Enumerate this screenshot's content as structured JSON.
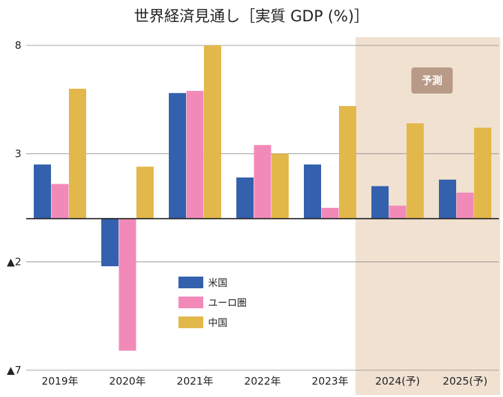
{
  "chart_data": {
    "type": "bar",
    "title": "世界経済見通し［実質 GDP (%)］",
    "categories": [
      "2019年",
      "2020年",
      "2021年",
      "2022年",
      "2023年",
      "2024(予)",
      "2025(予)"
    ],
    "series": [
      {
        "name": "米国",
        "values": [
          2.5,
          -2.2,
          5.8,
          1.9,
          2.5,
          1.5,
          1.8
        ]
      },
      {
        "name": "ユーロ圏",
        "values": [
          1.6,
          -6.1,
          5.9,
          3.4,
          0.5,
          0.6,
          1.2
        ]
      },
      {
        "name": "中国",
        "values": [
          6.0,
          2.4,
          8.0,
          3.0,
          5.2,
          4.4,
          4.2
        ]
      }
    ],
    "y_ticks": [
      {
        "value": 8,
        "label": "8"
      },
      {
        "value": 3,
        "label": "3"
      },
      {
        "value": -2,
        "label": "▲2"
      },
      {
        "value": -7,
        "label": "▲7"
      }
    ],
    "ylim": [
      -7,
      8
    ],
    "forecast_label": "予測",
    "forecast_start_index": 5,
    "grid": true,
    "legend_position": "center",
    "colors": {
      "米国": "#3461ad",
      "ユーロ圏": "#f28ab9",
      "中国": "#e3b84a",
      "forecast_bg": "#f0e1d1",
      "forecast_badge": "#b89a88"
    }
  }
}
